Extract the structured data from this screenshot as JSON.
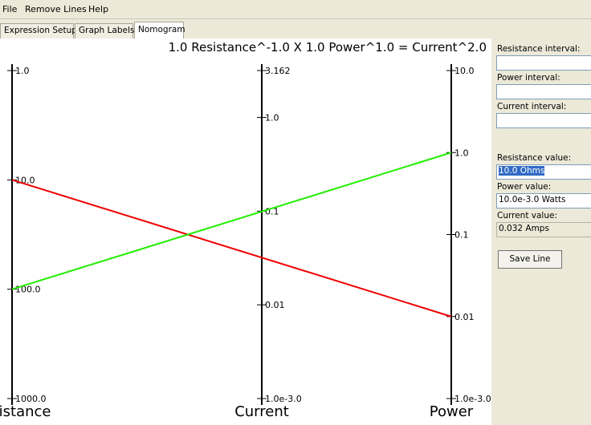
{
  "menu": {
    "file": "File",
    "remove_lines": "Remove Lines",
    "help": "Help"
  },
  "tabs": [
    {
      "label": "Expression Setup"
    },
    {
      "label": "Graph Labels"
    },
    {
      "label": "Nomogram"
    }
  ],
  "nomogram": {
    "equation": "1.0 Resistance^-1.0 X 1.0 Power^1.0 = Current^2.0",
    "colors": {
      "line_red": "#ee0000",
      "line_green": "#22ee00",
      "axis": "#000000"
    },
    "axes": [
      {
        "name": "Resistance",
        "ticks": [
          {
            "label": "1.0",
            "value": 1.0
          },
          {
            "label": "10.0",
            "value": 10.0
          },
          {
            "label": "100.0",
            "value": 100.0
          },
          {
            "label": "1000.0",
            "value": 1000.0
          }
        ]
      },
      {
        "name": "Current",
        "ticks": [
          {
            "label": "3.162",
            "value": 3.162
          },
          {
            "label": "1.0",
            "value": 1.0
          },
          {
            "label": "0.1",
            "value": 0.1
          },
          {
            "label": "0.01",
            "value": 0.01
          },
          {
            "label": "1.0e-3.0",
            "value": 0.001
          }
        ]
      },
      {
        "name": "Power",
        "ticks": [
          {
            "label": "10.0",
            "value": 10.0
          },
          {
            "label": "1.0",
            "value": 1.0
          },
          {
            "label": "0.1",
            "value": 0.1
          },
          {
            "label": "0.01",
            "value": 0.01
          },
          {
            "label": "1.0e-3.0",
            "value": 0.001
          }
        ]
      }
    ],
    "lines": [
      {
        "color": "red",
        "resistance": 10.0,
        "current": 0.032,
        "power": 0.01
      },
      {
        "color": "green",
        "resistance": 100.0,
        "current": 0.1,
        "power": 1.0
      }
    ]
  },
  "side": {
    "resistance_interval_label": "Resistance interval:",
    "resistance_interval_value": "",
    "power_interval_label": "Power interval:",
    "power_interval_value": "",
    "current_interval_label": "Current interval:",
    "current_interval_value": "",
    "resistance_value_label": "Resistance value:",
    "resistance_value": "10.0 Ohms",
    "power_value_label": "Power value:",
    "power_value": "10.0e-3.0 Watts",
    "current_value_label": "Current value:",
    "current_value": "0.032 Amps",
    "save_button": "Save Line"
  }
}
